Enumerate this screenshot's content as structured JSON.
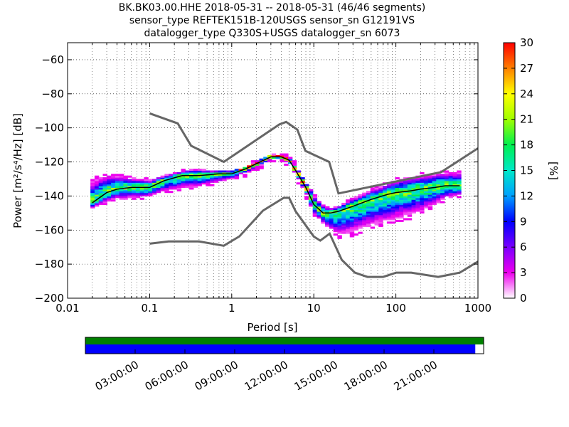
{
  "title": {
    "line1": "BK.BK03.00.HHE   2018-05-31 -- 2018-05-31  (46/46 segments)",
    "line2": "sensor_type REFTEK151B-120USGS sensor_sn G12191VS",
    "line3": "datalogger_type Q330S+USGS datalogger_sn 6073"
  },
  "chart_data": {
    "type": "heatmap",
    "xlabel": "Period [s]",
    "ylabel": "Power [m²/s⁴/Hz] [dB]",
    "xscale": "log",
    "xlim": [
      0.01,
      1000
    ],
    "ylim": [
      -200,
      -50
    ],
    "x_ticks": [
      0.01,
      0.1,
      1,
      10,
      100,
      1000
    ],
    "x_tick_labels": [
      "0.01",
      "0.1",
      "1",
      "10",
      "100",
      "1000"
    ],
    "y_ticks": [
      -200,
      -180,
      -160,
      -140,
      -120,
      -100,
      -80,
      -60
    ],
    "colorbar": {
      "label": "[%]",
      "range": [
        0,
        30
      ],
      "ticks": [
        0,
        3,
        6,
        9,
        12,
        15,
        18,
        21,
        24,
        27,
        30
      ]
    },
    "noise_model_high": {
      "period": [
        0.1,
        0.22,
        0.32,
        0.8,
        3.8,
        4.6,
        6.3,
        7.9,
        15.4,
        20,
        354.8,
        1000
      ],
      "db": [
        -91.5,
        -97.4,
        -110.5,
        -120,
        -98,
        -96.5,
        -101,
        -113.5,
        -120,
        -138.5,
        -126,
        -112
      ]
    },
    "noise_model_low": {
      "period": [
        0.1,
        0.17,
        0.4,
        0.8,
        1.24,
        2.4,
        4.3,
        5,
        6,
        10,
        12,
        15.6,
        21.9,
        31.6,
        45,
        70,
        101,
        154,
        328,
        600,
        1000
      ],
      "db": [
        -168,
        -166.7,
        -166.7,
        -169.2,
        -163.7,
        -148.6,
        -141.1,
        -141.1,
        -149,
        -163.8,
        -166.2,
        -162.1,
        -177.5,
        -185,
        -187.5,
        -187.5,
        -185,
        -185,
        -187.5,
        -185,
        -178.5
      ]
    },
    "mode_curve": {
      "period": [
        0.02,
        0.03,
        0.04,
        0.06,
        0.1,
        0.15,
        0.25,
        0.4,
        0.7,
        1,
        1.5,
        2,
        3,
        4,
        5,
        6,
        8,
        10,
        13,
        16,
        20,
        30,
        50,
        80,
        100,
        150,
        200,
        300,
        400,
        600
      ],
      "db": [
        -144,
        -138,
        -136,
        -135,
        -135,
        -131,
        -128,
        -128,
        -127,
        -127,
        -124,
        -121,
        -117,
        -117,
        -119,
        -125,
        -135,
        -145,
        -150,
        -150,
        -149,
        -146,
        -142,
        -139,
        -138,
        -137,
        -136,
        -135,
        -134,
        -134
      ]
    },
    "percentile_band_db": {
      "upper": [
        -130,
        -126,
        -127,
        -129,
        -130,
        -128,
        -125,
        -124,
        -126,
        -126,
        -122,
        -119,
        -115,
        -115,
        -116,
        -121,
        -130,
        -139,
        -145,
        -147,
        -146,
        -141,
        -136,
        -132,
        -130,
        -128,
        -127,
        -126,
        -125,
        -125
      ],
      "lower": [
        -148,
        -145,
        -143,
        -143,
        -142,
        -139,
        -137,
        -136,
        -133,
        -131,
        -129,
        -126,
        -121,
        -121,
        -123,
        -131,
        -142,
        -152,
        -158,
        -162,
        -166,
        -164,
        -160,
        -158,
        -156,
        -154,
        -152,
        -147,
        -143,
        -141
      ]
    },
    "timeline": {
      "tick_labels": [
        "03:00:00",
        "06:00:00",
        "09:00:00",
        "12:00:00",
        "15:00:00",
        "18:00:00",
        "21:00:00"
      ],
      "coverage_fraction": 0.979,
      "colors": {
        "data": "#008000",
        "segments": "#0000ff"
      }
    },
    "grid": true
  }
}
